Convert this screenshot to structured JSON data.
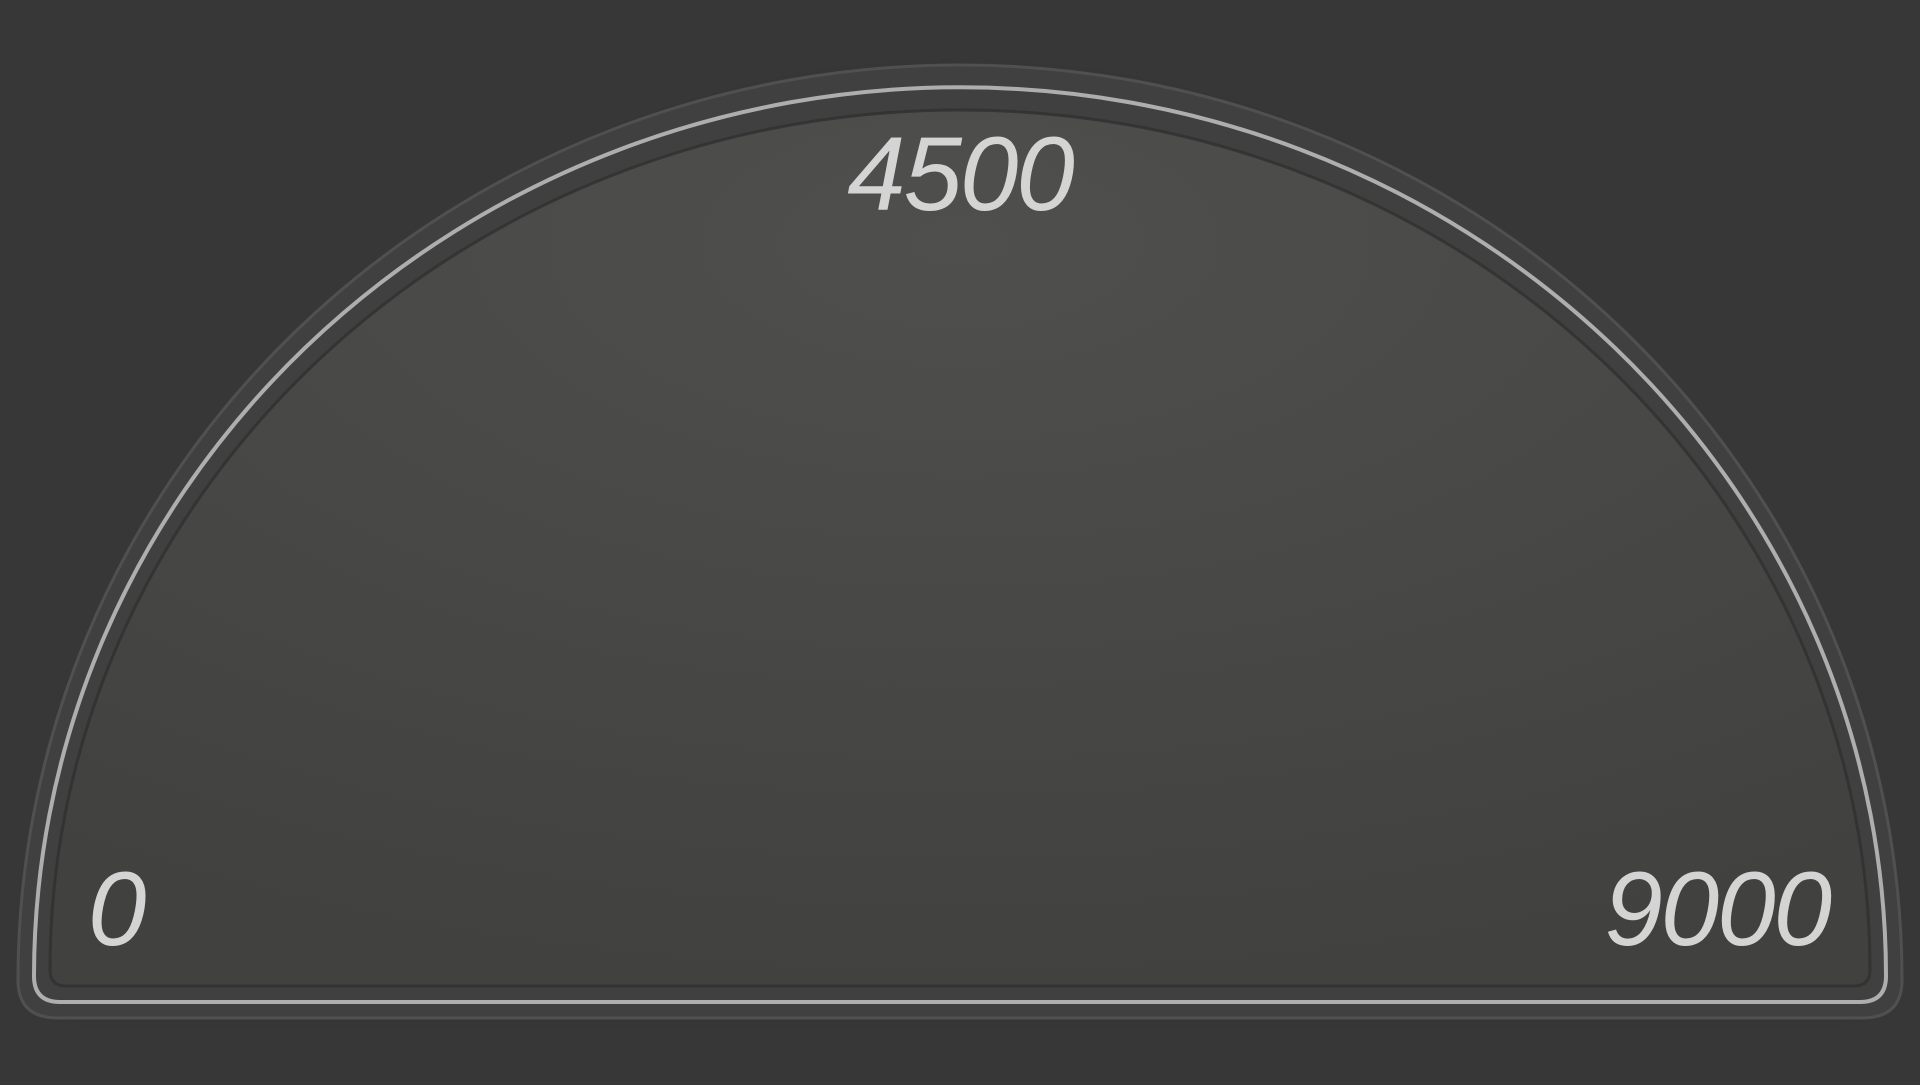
{
  "gauge": {
    "min_label": "0",
    "mid_label": "4500",
    "max_label": "9000",
    "min": 0,
    "max": 9000,
    "colors": {
      "background": "#373737",
      "face": "#464645",
      "rim": "#c9c9c9",
      "label": "#d4d4d4"
    }
  }
}
